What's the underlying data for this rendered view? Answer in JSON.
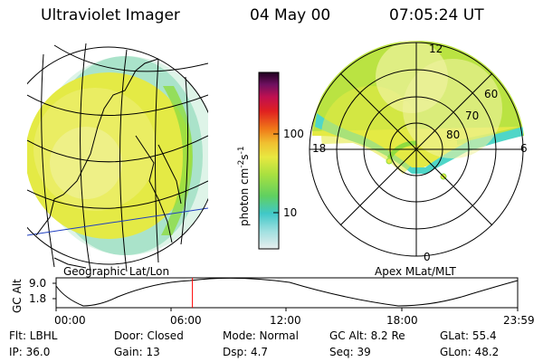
{
  "header": {
    "instrument": "Ultraviolet Imager",
    "date": "04 May 00",
    "time": "07:05:24 UT"
  },
  "panels": {
    "left_label": "Geographic Lat/Lon",
    "right_label": "Apex MLat/MLT"
  },
  "polar_plot": {
    "mlt_labels": {
      "top": "12",
      "left": "18",
      "right": "6",
      "bottom": "0"
    },
    "lat_labels": [
      "60",
      "70",
      "80"
    ]
  },
  "colorbar": {
    "unit_label": "photon cm",
    "unit_exp1": "-2",
    "unit_mid": "s",
    "unit_exp2": "-1",
    "tick_high": "100",
    "tick_low": "10"
  },
  "alt_plot": {
    "ylabel": "GC Alt",
    "ytick_high": "9.0",
    "ytick_low": "1.8",
    "xticks": [
      "00:00",
      "06:00",
      "12:00",
      "18:00",
      "23:59"
    ],
    "current_time_fraction": 0.2953,
    "marker_color": "#ff0000"
  },
  "status": {
    "flt": "Flt: LBHL",
    "door": "Door: Closed",
    "mode": "Mode: Normal",
    "gc_alt": "GC Alt: 8.2 Re",
    "glat": "GLat:   55.4",
    "ip": "IP: 36.0",
    "gain": "Gain: 13",
    "dsp": "Dsp:     4.7",
    "seq": "Seq: 39",
    "glon": "GLon:   48.2"
  },
  "colors": {
    "emission_main": "#e4ea45",
    "emission_light": "#f0f2a0",
    "emission_green": "#8fdc40",
    "emission_cyan": "#4fd6c8",
    "colorbar_stops": [
      "#e8eeee",
      "#a0e0e0",
      "#40c8c8",
      "#60d060",
      "#a8e040",
      "#e8e840",
      "#f0c030",
      "#f07818",
      "#e02020",
      "#c01050",
      "#701060",
      "#200020"
    ]
  }
}
